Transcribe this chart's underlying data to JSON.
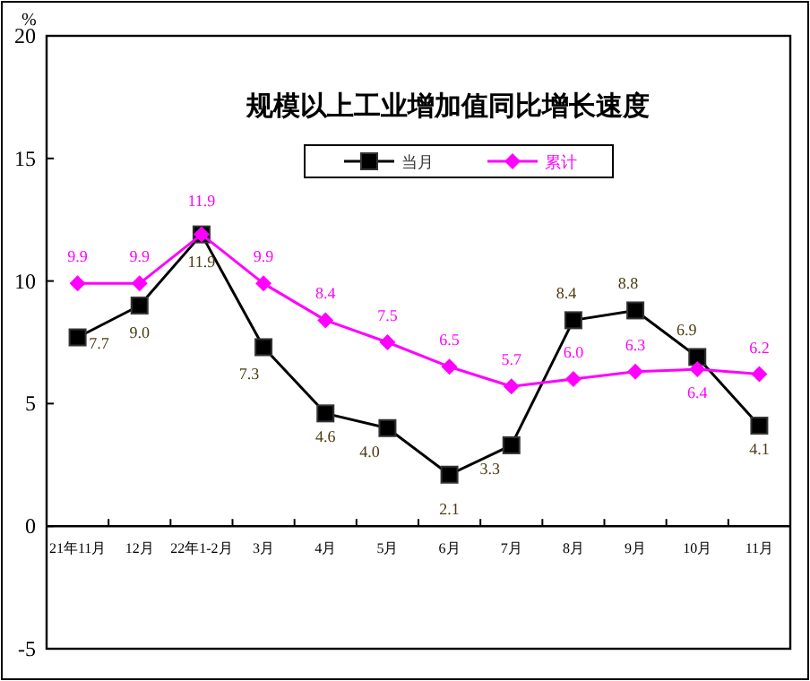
{
  "chart_data": {
    "type": "line",
    "title": "规模以上工业增加值同比增长速度",
    "ylabel": "%",
    "categories": [
      "21年11月",
      "12月",
      "22年1-2月",
      "3月",
      "4月",
      "5月",
      "6月",
      "7月",
      "8月",
      "9月",
      "10月",
      "11月"
    ],
    "series": [
      {
        "name": "当月",
        "color": "#000000",
        "marker": "square",
        "values": [
          7.7,
          9.0,
          11.9,
          7.3,
          4.6,
          4.0,
          2.1,
          3.3,
          8.4,
          8.8,
          6.9,
          4.1
        ],
        "value_labels": [
          "7.7",
          "9.0",
          "11.9",
          "7.3",
          "4.6",
          "4.0",
          "2.1",
          "3.3",
          "8.4",
          "8.8",
          "6.9",
          "4.1"
        ]
      },
      {
        "name": "累计",
        "color": "#ff00ff",
        "marker": "diamond",
        "values": [
          9.9,
          9.9,
          11.9,
          9.9,
          8.4,
          7.5,
          6.5,
          5.7,
          6.0,
          6.3,
          6.4,
          6.2
        ],
        "value_labels": [
          "9.9",
          "9.9",
          "11.9",
          "9.9",
          "8.4",
          "7.5",
          "6.5",
          "5.7",
          "6.0",
          "6.3",
          "6.4",
          "6.2"
        ]
      }
    ],
    "ylim": [
      -5,
      20
    ],
    "yticks": [
      -5,
      0,
      5,
      10,
      15,
      20
    ],
    "grid": false,
    "legend": "top"
  }
}
